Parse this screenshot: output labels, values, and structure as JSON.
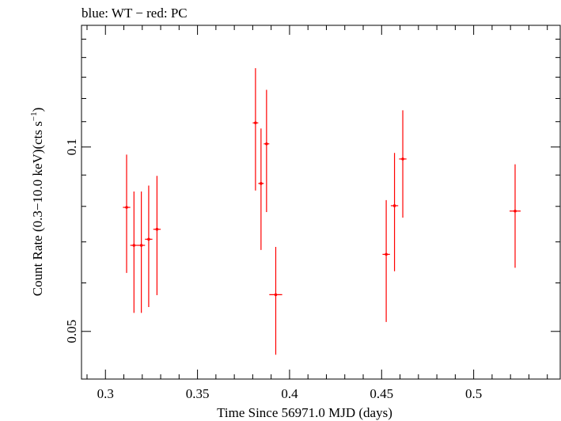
{
  "chart_data": {
    "type": "scatter",
    "title": "blue: WT − red: PC",
    "xlabel": "Time Since 56971.0 MJD (days)",
    "ylabel": "Count Rate (0.3−10.0 keV)(cts s",
    "ylabel_sup": "−1",
    "ylabel_close": ")",
    "y_scale": "log",
    "xlim": [
      0.287,
      0.547
    ],
    "ylim": [
      0.0418,
      0.158
    ],
    "x_ticks": [
      {
        "value": 0.3,
        "label": "0.3"
      },
      {
        "value": 0.35,
        "label": "0.35"
      },
      {
        "value": 0.4,
        "label": "0.4"
      },
      {
        "value": 0.45,
        "label": "0.45"
      },
      {
        "value": 0.5,
        "label": "0.5"
      }
    ],
    "y_ticks": [
      {
        "value": 0.05,
        "label": "0.05"
      },
      {
        "value": 0.1,
        "label": "0.1"
      }
    ],
    "series": [
      {
        "color": "#ff0000",
        "points": [
          {
            "x": 0.3115,
            "xerr": 0.002,
            "y": 0.0797,
            "ylo": 0.0623,
            "yhi": 0.0972
          },
          {
            "x": 0.3155,
            "xerr": 0.002,
            "y": 0.0691,
            "ylo": 0.0536,
            "yhi": 0.0846
          },
          {
            "x": 0.3195,
            "xerr": 0.002,
            "y": 0.0691,
            "ylo": 0.0536,
            "yhi": 0.0846
          },
          {
            "x": 0.3235,
            "xerr": 0.002,
            "y": 0.0707,
            "ylo": 0.0548,
            "yhi": 0.0865
          },
          {
            "x": 0.328,
            "xerr": 0.002,
            "y": 0.0734,
            "ylo": 0.0573,
            "yhi": 0.0897
          },
          {
            "x": 0.3815,
            "xerr": 0.0015,
            "y": 0.1095,
            "ylo": 0.0849,
            "yhi": 0.1345
          },
          {
            "x": 0.3845,
            "xerr": 0.0015,
            "y": 0.0872,
            "ylo": 0.0679,
            "yhi": 0.1072
          },
          {
            "x": 0.3875,
            "xerr": 0.0015,
            "y": 0.1012,
            "ylo": 0.0783,
            "yhi": 0.124
          },
          {
            "x": 0.3925,
            "xerr": 0.0035,
            "y": 0.0574,
            "ylo": 0.0458,
            "yhi": 0.0687
          },
          {
            "x": 0.4525,
            "xerr": 0.002,
            "y": 0.0668,
            "ylo": 0.0518,
            "yhi": 0.0819
          },
          {
            "x": 0.457,
            "xerr": 0.002,
            "y": 0.0802,
            "ylo": 0.0627,
            "yhi": 0.0978
          },
          {
            "x": 0.4615,
            "xerr": 0.002,
            "y": 0.0956,
            "ylo": 0.0767,
            "yhi": 0.1148
          },
          {
            "x": 0.5225,
            "xerr": 0.003,
            "y": 0.0786,
            "ylo": 0.0635,
            "yhi": 0.0937
          }
        ]
      }
    ]
  }
}
